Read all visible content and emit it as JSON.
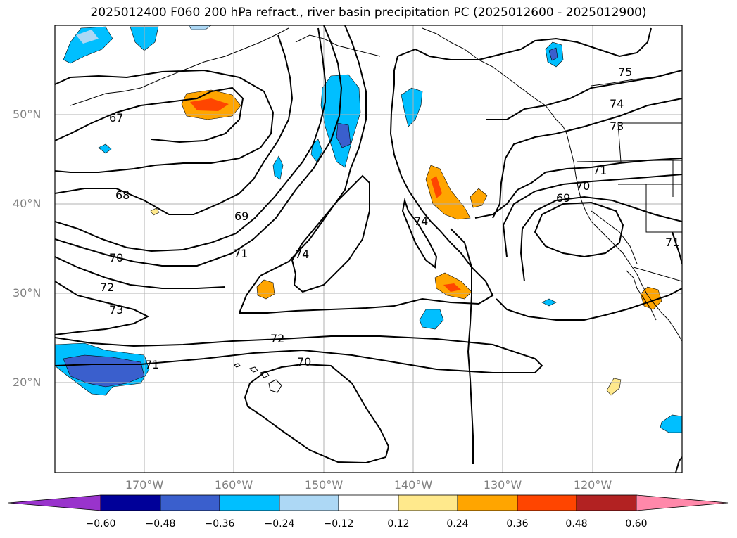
{
  "title": "2025012400 F060 200 hPa refract., river basin precipitation PC (2025012600 - 2025012900)",
  "lat_labels": [
    "50°N",
    "40°N",
    "30°N",
    "20°N"
  ],
  "lon_labels": [
    "170°W",
    "160°W",
    "150°W",
    "140°W",
    "130°W",
    "120°W"
  ],
  "contour_labels": [
    "67",
    "68",
    "69",
    "70",
    "71",
    "72",
    "73",
    "74",
    "75",
    "74",
    "73",
    "71",
    "70",
    "69",
    "74",
    "72",
    "71",
    "70",
    "71"
  ],
  "colorbar": {
    "tick_labels": [
      "−0.60",
      "−0.48",
      "−0.36",
      "−0.24",
      "−0.12",
      "0.12",
      "0.24",
      "0.36",
      "0.48",
      "0.60"
    ],
    "colors": [
      "#9933cc",
      "#000099",
      "#3a5fcd",
      "#00bfff",
      "#add8f5",
      "#ffffff",
      "#ffe98c",
      "#ffa500",
      "#ff4500",
      "#b22222",
      "#ff88aa"
    ]
  },
  "colors": {
    "coast": "#000000",
    "grid": "#b0b0b0",
    "axis_label": "#808080"
  }
}
